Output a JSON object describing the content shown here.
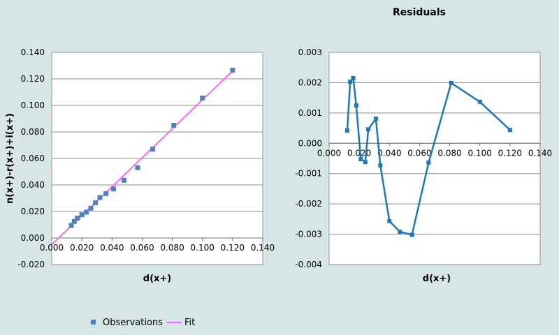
{
  "chart_data": [
    {
      "type": "scatter",
      "title": "",
      "xlabel": "d(x+)",
      "ylabel": "n(x+)-r(x+)+i(x+)",
      "xlim": [
        0.0,
        0.14
      ],
      "ylim": [
        -0.02,
        0.14
      ],
      "xticks": [
        "0.000",
        "0.020",
        "0.040",
        "0.060",
        "0.080",
        "0.100",
        "0.120",
        "0.140"
      ],
      "yticks": [
        "-0.020",
        "0.000",
        "0.020",
        "0.040",
        "0.060",
        "0.080",
        "0.100",
        "0.120",
        "0.140"
      ],
      "grid": "horizontal",
      "legend_position": "bottom",
      "series": [
        {
          "name": "Observations",
          "kind": "markers",
          "color": "#4f81bd",
          "points": [
            [
              0.013,
              0.0095
            ],
            [
              0.015,
              0.0125
            ],
            [
              0.017,
              0.015
            ],
            [
              0.02,
              0.0175
            ],
            [
              0.023,
              0.0195
            ],
            [
              0.026,
              0.0225
            ],
            [
              0.029,
              0.0265
            ],
            [
              0.032,
              0.0305
            ],
            [
              0.036,
              0.0335
            ],
            [
              0.041,
              0.037
            ],
            [
              0.048,
              0.0435
            ],
            [
              0.057,
              0.053
            ],
            [
              0.067,
              0.067
            ],
            [
              0.081,
              0.085
            ],
            [
              0.1,
              0.1055
            ],
            [
              0.12,
              0.1265
            ]
          ]
        },
        {
          "name": "Fit",
          "kind": "line",
          "color": "#ff66ff",
          "points": [
            [
              0.0,
              -0.005
            ],
            [
              0.12,
              0.126
            ]
          ]
        }
      ]
    },
    {
      "type": "line",
      "title": "Residuals",
      "xlabel": "d(x+)",
      "ylabel": "",
      "xlim": [
        0.0,
        0.14
      ],
      "ylim": [
        -0.004,
        0.003
      ],
      "xticks": [
        "0.000",
        "0.020",
        "0.040",
        "0.060",
        "0.080",
        "0.100",
        "0.120",
        "0.140"
      ],
      "yticks": [
        "-0.004",
        "-0.003",
        "-0.002",
        "-0.001",
        "0.000",
        "0.001",
        "0.002",
        "0.003"
      ],
      "grid": "horizontal",
      "series": [
        {
          "color": "#1f77b4",
          "points": [
            [
              0.012,
              0.00042
            ],
            [
              0.014,
              0.00203
            ],
            [
              0.016,
              0.00215
            ],
            [
              0.018,
              0.00125
            ],
            [
              0.021,
              -0.00052
            ],
            [
              0.024,
              -0.00062
            ],
            [
              0.026,
              0.00046
            ],
            [
              0.031,
              0.00081
            ],
            [
              0.034,
              -0.00073
            ],
            [
              0.04,
              -0.00257
            ],
            [
              0.047,
              -0.00292
            ],
            [
              0.055,
              -0.00302
            ],
            [
              0.066,
              -0.00064
            ],
            [
              0.081,
              0.00199
            ],
            [
              0.1,
              0.00137
            ],
            [
              0.12,
              0.00044
            ]
          ]
        }
      ]
    }
  ]
}
